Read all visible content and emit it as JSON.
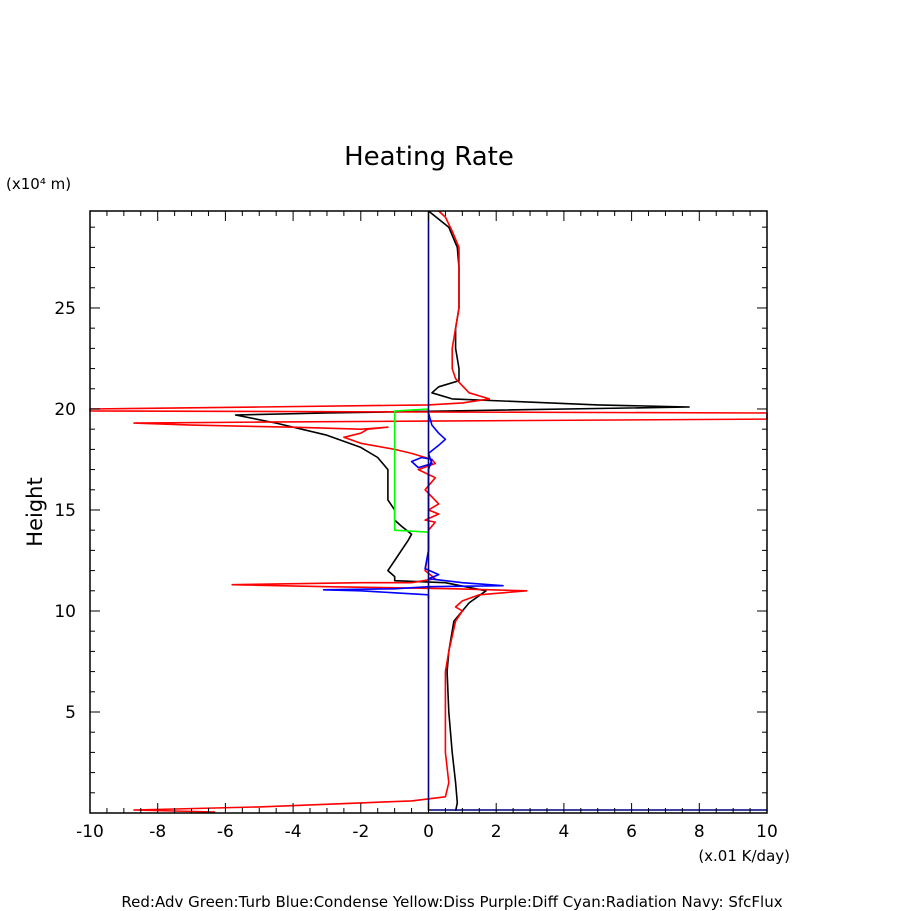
{
  "chart_data": {
    "type": "line",
    "title": "Heating Rate",
    "xlabel": "",
    "ylabel": "Height",
    "x_unit_label": "(x.01 K/day)",
    "y_unit_label": "(x10⁴ m)",
    "xlim": [
      -10,
      10
    ],
    "ylim": [
      0,
      29.8
    ],
    "x_ticks": [
      -10,
      -8,
      -6,
      -4,
      -2,
      0,
      2,
      4,
      6,
      8,
      10
    ],
    "y_ticks": [
      5,
      10,
      15,
      20,
      25
    ],
    "grid": false,
    "legend_text": "Red:Adv Green:Turb Blue:Condense Yellow:Diss Purple:Diff Cyan:Radiation Navy: SfcFlux",
    "series": [
      {
        "color": "#000000",
        "points": [
          [
            0.8,
            0.1
          ],
          [
            0.85,
            0.5
          ],
          [
            0.8,
            1.5
          ],
          [
            0.7,
            3
          ],
          [
            0.6,
            5
          ],
          [
            0.55,
            7
          ],
          [
            0.6,
            8
          ],
          [
            0.75,
            9.5
          ],
          [
            1.2,
            10.4
          ],
          [
            1.7,
            11.0
          ],
          [
            0.5,
            11.4
          ],
          [
            -1.0,
            11.5
          ],
          [
            -1.0,
            11.7
          ],
          [
            -1.2,
            12.0
          ],
          [
            -1.0,
            12.5
          ],
          [
            -0.8,
            13.0
          ],
          [
            -0.6,
            13.5
          ],
          [
            -0.5,
            13.8
          ],
          [
            -0.8,
            14.2
          ],
          [
            -1.0,
            14.5
          ],
          [
            -1.0,
            15.0
          ],
          [
            -1.2,
            15.5
          ],
          [
            -1.2,
            17.0
          ],
          [
            -1.5,
            17.6
          ],
          [
            -2.0,
            18.1
          ],
          [
            -3.0,
            18.7
          ],
          [
            -4.5,
            19.3
          ],
          [
            -5.7,
            19.7
          ],
          [
            -3.0,
            19.8
          ],
          [
            0.5,
            19.9
          ],
          [
            7.7,
            20.1
          ],
          [
            5.0,
            20.2
          ],
          [
            0.7,
            20.5
          ],
          [
            0.1,
            20.8
          ],
          [
            0.3,
            21.1
          ],
          [
            0.9,
            21.4
          ],
          [
            0.9,
            22
          ],
          [
            0.8,
            23
          ],
          [
            0.8,
            24
          ],
          [
            0.9,
            25
          ],
          [
            0.9,
            26
          ],
          [
            0.9,
            27
          ],
          [
            0.85,
            28
          ],
          [
            0.6,
            29
          ],
          [
            0.0,
            29.8
          ]
        ]
      },
      {
        "color": "#ff0000",
        "points": [
          [
            -6.3,
            0.05
          ],
          [
            -7.5,
            0.1
          ],
          [
            -8.7,
            0.15
          ],
          [
            -5.0,
            0.3
          ],
          [
            -2.0,
            0.5
          ],
          [
            -0.5,
            0.6
          ],
          [
            0.5,
            0.8
          ],
          [
            0.6,
            1.5
          ],
          [
            0.5,
            3
          ],
          [
            0.5,
            5
          ],
          [
            0.5,
            7
          ],
          [
            0.6,
            8
          ],
          [
            0.8,
            9.5
          ],
          [
            1.0,
            10.0
          ],
          [
            0.8,
            10.2
          ],
          [
            1.0,
            10.5
          ],
          [
            1.5,
            10.8
          ],
          [
            2.9,
            11.0
          ],
          [
            0.8,
            11.1
          ],
          [
            -3.0,
            11.2
          ],
          [
            -5.8,
            11.3
          ],
          [
            -2.0,
            11.4
          ],
          [
            -0.5,
            11.4
          ],
          [
            0.2,
            11.6
          ],
          [
            -0.1,
            12
          ],
          [
            0.0,
            13
          ],
          [
            0.0,
            14
          ],
          [
            0.2,
            14.4
          ],
          [
            -0.1,
            14.5
          ],
          [
            0.3,
            14.8
          ],
          [
            0.0,
            15.0
          ],
          [
            0.3,
            15.3
          ],
          [
            -0.1,
            16
          ],
          [
            0.2,
            16.6
          ],
          [
            -0.3,
            17
          ],
          [
            0.2,
            17.3
          ],
          [
            0.1,
            17.5
          ],
          [
            -0.5,
            17.8
          ],
          [
            -1.0,
            18.0
          ],
          [
            -2.0,
            18.3
          ],
          [
            -2.5,
            18.6
          ],
          [
            -2.0,
            18.8
          ],
          [
            -1.8,
            19.0
          ],
          [
            -1.2,
            19.1
          ],
          [
            -2.0,
            19.0
          ],
          [
            -4.0,
            19.1
          ],
          [
            -7.0,
            19.2
          ],
          [
            -8.7,
            19.3
          ],
          [
            -5.0,
            19.35
          ],
          [
            0.0,
            19.4
          ],
          [
            10.0,
            19.5
          ],
          [
            10.0,
            19.8
          ],
          [
            0.0,
            19.85
          ],
          [
            -10.0,
            19.9
          ],
          [
            -10.0,
            20.0
          ],
          [
            -5.0,
            20.1
          ],
          [
            0.0,
            20.2
          ],
          [
            1.0,
            20.3
          ],
          [
            1.8,
            20.5
          ],
          [
            1.2,
            20.8
          ],
          [
            0.8,
            21.5
          ],
          [
            0.7,
            22
          ],
          [
            0.7,
            23
          ],
          [
            0.8,
            24
          ],
          [
            0.9,
            25
          ],
          [
            0.9,
            26
          ],
          [
            0.9,
            27
          ],
          [
            0.9,
            28
          ],
          [
            0.7,
            28.8
          ],
          [
            0.5,
            29.5
          ],
          [
            0.3,
            29.8
          ]
        ]
      },
      {
        "color": "#0000ff",
        "points": [
          [
            0.0,
            10.6
          ],
          [
            0.0,
            10.8
          ],
          [
            -1.0,
            10.9
          ],
          [
            -2.0,
            11.0
          ],
          [
            -3.1,
            11.05
          ],
          [
            -1.0,
            11.1
          ],
          [
            0.0,
            11.2
          ],
          [
            2.2,
            11.25
          ],
          [
            1.0,
            11.4
          ],
          [
            0.0,
            11.6
          ],
          [
            0.3,
            11.8
          ],
          [
            -0.1,
            12.1
          ],
          [
            0.0,
            13
          ],
          [
            0.0,
            15
          ],
          [
            0.0,
            17
          ],
          [
            0.1,
            17.5
          ],
          [
            -0.2,
            17.6
          ],
          [
            -0.5,
            17.4
          ],
          [
            -0.3,
            17.1
          ],
          [
            0.1,
            17.3
          ],
          [
            0.0,
            17.8
          ],
          [
            0.3,
            18.2
          ],
          [
            0.5,
            18.5
          ],
          [
            0.3,
            18.8
          ],
          [
            0.1,
            19.2
          ],
          [
            0.0,
            19.8
          ]
        ]
      },
      {
        "color": "#00ff00",
        "points": [
          [
            0.0,
            13.9
          ],
          [
            -1.0,
            14.0
          ],
          [
            -1.0,
            16.5
          ],
          [
            -1.0,
            19.9
          ],
          [
            0.0,
            20.0
          ]
        ]
      },
      {
        "color": "#000080",
        "points": [
          [
            0.0,
            0.15
          ],
          [
            10.0,
            0.15
          ],
          [
            0.0,
            0.15
          ],
          [
            0.0,
            29.8
          ]
        ]
      }
    ]
  }
}
